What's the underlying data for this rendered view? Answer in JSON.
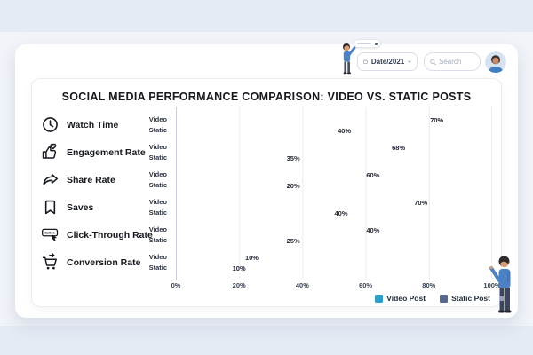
{
  "topbar": {
    "date_filter_label": "Date/2021",
    "search_placeholder": "Search"
  },
  "title": "SOCIAL MEDIA PERFORMANCE COMPARISON: VIDEO VS. STATIC POSTS",
  "chart_data": {
    "type": "bar",
    "orientation": "horizontal",
    "title": "SOCIAL MEDIA PERFORMANCE COMPARISON: VIDEO VS. STATIC POSTS",
    "categories": [
      "Watch Time",
      "Engagement Rate",
      "Share Rate",
      "Saves",
      "Click-Through Rate",
      "Conversion Rate"
    ],
    "category_icons": [
      "clock-icon",
      "thumbs-up-heart-icon",
      "share-arrow-icon",
      "bookmark-icon",
      "button-click-icon",
      "cart-arrow-icon"
    ],
    "row_series_labels": [
      "Video",
      "Static"
    ],
    "series": [
      {
        "name": "Video Post",
        "values": [
          70,
          68,
          60,
          70,
          40,
          10
        ],
        "visual_bar_pct": [
          80,
          68,
          60,
          75,
          60,
          22
        ],
        "bar_gradient": [
          "#2cb5ad",
          "#357fc0"
        ],
        "legend_color": "#2d9dc8"
      },
      {
        "name": "Static Post",
        "values": [
          40,
          35,
          20,
          40,
          25,
          10
        ],
        "visual_bar_pct": [
          51,
          35,
          35,
          50,
          35,
          18
        ],
        "bar_gradient": [
          "#3c4c68",
          "#8495ae"
        ],
        "legend_color": "#56698a"
      }
    ],
    "x_ticks": [
      "0%",
      "20%",
      "40%",
      "60%",
      "80%",
      "100%"
    ],
    "xlim": [
      0,
      100
    ],
    "grid": "vertical",
    "legend_position": "bottom-right",
    "button_icon_text": "Button"
  },
  "colors": {
    "page_band": "#e5ebf4",
    "page_middle": "#f1f4f9",
    "illustration_blue": "#4c82c4"
  }
}
